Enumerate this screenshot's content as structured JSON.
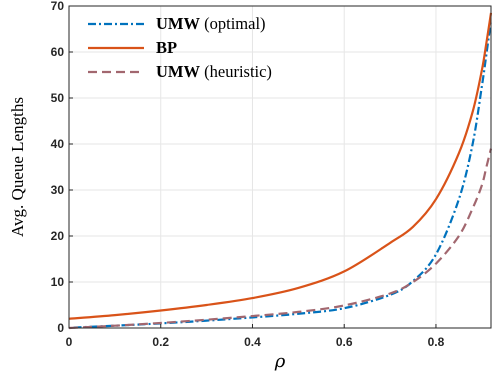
{
  "chart_data": {
    "type": "line",
    "title": "",
    "xlabel": "ρ",
    "ylabel": "Avg. Queue Lengths",
    "xlim": [
      0,
      0.92
    ],
    "ylim": [
      0,
      70
    ],
    "xticks": [
      0,
      0.2,
      0.4,
      0.6,
      0.8
    ],
    "xtick_labels": [
      "0",
      "0.2",
      "0.4",
      "0.6",
      "0.8"
    ],
    "yticks": [
      0,
      10,
      20,
      30,
      40,
      50,
      60,
      70
    ],
    "ytick_labels": [
      "0",
      "10",
      "20",
      "30",
      "40",
      "50",
      "60",
      "70"
    ],
    "grid": true,
    "legend_position": "top-left",
    "series": [
      {
        "name_bold": "UMW",
        "name_rest": " (optimal)",
        "color": "#0072BD",
        "dash": "dashdot",
        "x": [
          0.01,
          0.1,
          0.2,
          0.3,
          0.4,
          0.5,
          0.6,
          0.7,
          0.75,
          0.8,
          0.85,
          0.88,
          0.9,
          0.91,
          0.92
        ],
        "y": [
          0.1,
          0.5,
          1.0,
          1.6,
          2.3,
          3.1,
          4.3,
          7.2,
          10.2,
          16.0,
          28.0,
          40.0,
          52.5,
          59.5,
          67.0
        ]
      },
      {
        "name_bold": "BP",
        "name_rest": "",
        "color": "#D95319",
        "dash": "solid",
        "x": [
          0.0,
          0.1,
          0.2,
          0.3,
          0.4,
          0.5,
          0.6,
          0.7,
          0.75,
          0.8,
          0.85,
          0.88,
          0.9,
          0.91,
          0.92
        ],
        "y": [
          2.0,
          2.8,
          3.8,
          5.0,
          6.5,
          8.7,
          12.3,
          18.5,
          22.0,
          28.0,
          38.0,
          47.0,
          56.0,
          62.0,
          68.5
        ]
      },
      {
        "name_bold": "UMW",
        "name_rest": " (heuristic)",
        "color": "#A2676F",
        "dash": "dashed",
        "x": [
          0.0,
          0.1,
          0.2,
          0.3,
          0.4,
          0.5,
          0.6,
          0.7,
          0.75,
          0.8,
          0.85,
          0.88,
          0.9,
          0.91,
          0.92
        ],
        "y": [
          0.0,
          0.5,
          1.1,
          1.8,
          2.6,
          3.5,
          4.9,
          7.5,
          10.0,
          14.0,
          20.0,
          26.0,
          31.0,
          35.0,
          39.0
        ]
      }
    ]
  }
}
